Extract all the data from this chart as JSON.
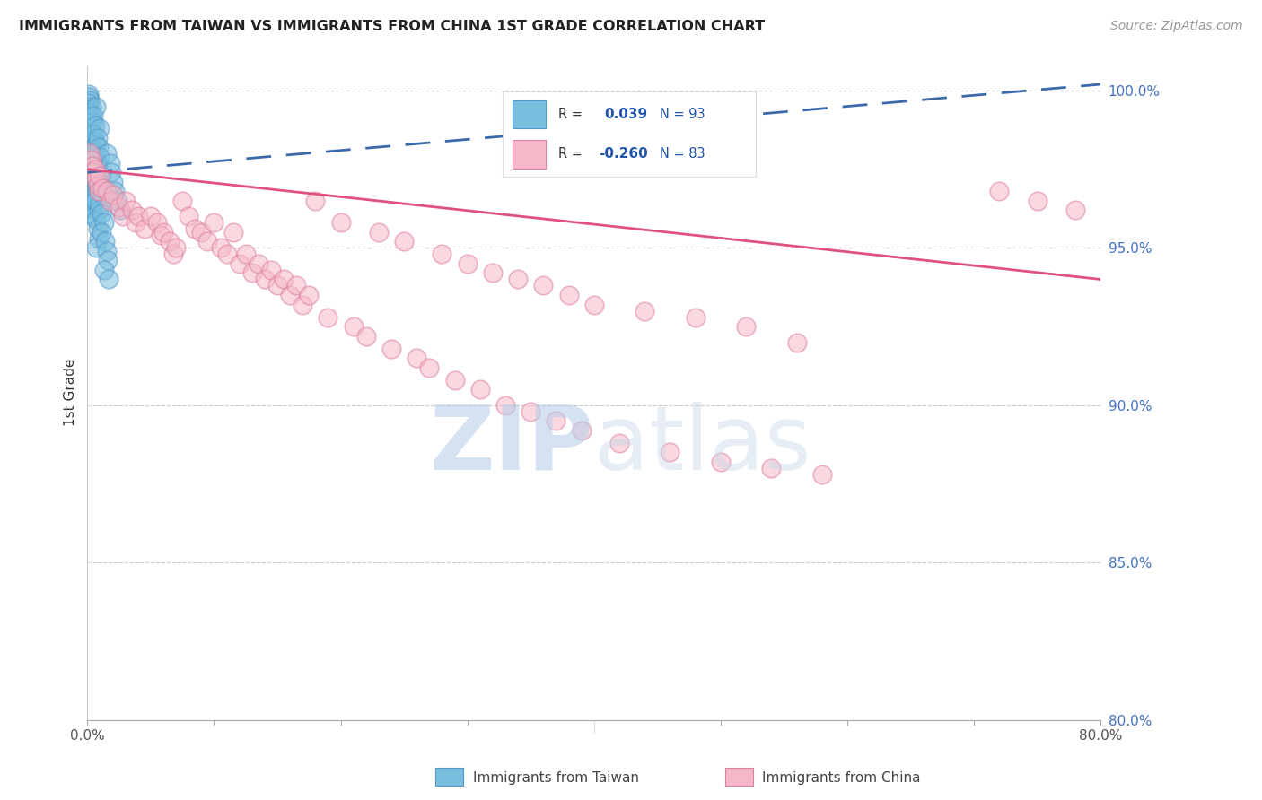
{
  "title": "IMMIGRANTS FROM TAIWAN VS IMMIGRANTS FROM CHINA 1ST GRADE CORRELATION CHART",
  "source": "Source: ZipAtlas.com",
  "ylabel": "1st Grade",
  "xlim": [
    0.0,
    0.8
  ],
  "ylim": [
    0.8,
    1.008
  ],
  "taiwan_R": 0.039,
  "taiwan_N": 93,
  "china_R": -0.26,
  "china_N": 83,
  "taiwan_color": "#7abfdf",
  "taiwan_edge": "#5599cc",
  "china_color": "#f5b8c8",
  "china_edge": "#e080a0",
  "taiwan_line_color": "#3a6aaa",
  "china_line_color": "#e05080",
  "taiwan_scatter_x": [
    0.001,
    0.001,
    0.002,
    0.001,
    0.003,
    0.001,
    0.002,
    0.001,
    0.002,
    0.003,
    0.001,
    0.002,
    0.001,
    0.002,
    0.003,
    0.001,
    0.002,
    0.003,
    0.001,
    0.002,
    0.002,
    0.003,
    0.001,
    0.002,
    0.003,
    0.004,
    0.002,
    0.003,
    0.001,
    0.004,
    0.003,
    0.002,
    0.004,
    0.003,
    0.005,
    0.002,
    0.003,
    0.004,
    0.002,
    0.005,
    0.003,
    0.004,
    0.005,
    0.003,
    0.006,
    0.004,
    0.005,
    0.003,
    0.006,
    0.004,
    0.005,
    0.006,
    0.004,
    0.007,
    0.005,
    0.006,
    0.005,
    0.007,
    0.006,
    0.008,
    0.006,
    0.007,
    0.008,
    0.006,
    0.009,
    0.007,
    0.008,
    0.009,
    0.007,
    0.01,
    0.008,
    0.009,
    0.01,
    0.008,
    0.011,
    0.009,
    0.012,
    0.01,
    0.011,
    0.013,
    0.011,
    0.014,
    0.015,
    0.016,
    0.013,
    0.017,
    0.015,
    0.018,
    0.019,
    0.02,
    0.022,
    0.024,
    0.026
  ],
  "taiwan_scatter_y": [
    0.999,
    0.998,
    0.997,
    0.996,
    0.995,
    0.994,
    0.993,
    0.992,
    0.991,
    0.99,
    0.989,
    0.988,
    0.987,
    0.986,
    0.985,
    0.984,
    0.983,
    0.982,
    0.981,
    0.98,
    0.979,
    0.978,
    0.977,
    0.976,
    0.975,
    0.974,
    0.973,
    0.972,
    0.971,
    0.97,
    0.969,
    0.968,
    0.967,
    0.966,
    0.965,
    0.964,
    0.963,
    0.962,
    0.961,
    0.96,
    0.981,
    0.978,
    0.975,
    0.972,
    0.969,
    0.966,
    0.99,
    0.987,
    0.984,
    0.981,
    0.978,
    0.975,
    0.972,
    0.995,
    0.992,
    0.989,
    0.986,
    0.983,
    0.98,
    0.977,
    0.974,
    0.971,
    0.968,
    0.965,
    0.962,
    0.959,
    0.956,
    0.953,
    0.95,
    0.988,
    0.985,
    0.982,
    0.979,
    0.976,
    0.973,
    0.97,
    0.967,
    0.964,
    0.961,
    0.958,
    0.955,
    0.952,
    0.949,
    0.946,
    0.943,
    0.94,
    0.98,
    0.977,
    0.974,
    0.971,
    0.968,
    0.965,
    0.962
  ],
  "china_scatter_x": [
    0.002,
    0.003,
    0.004,
    0.005,
    0.006,
    0.007,
    0.008,
    0.009,
    0.01,
    0.012,
    0.015,
    0.018,
    0.02,
    0.025,
    0.028,
    0.03,
    0.035,
    0.038,
    0.04,
    0.045,
    0.05,
    0.055,
    0.058,
    0.06,
    0.065,
    0.068,
    0.07,
    0.075,
    0.08,
    0.085,
    0.09,
    0.095,
    0.1,
    0.105,
    0.11,
    0.115,
    0.12,
    0.125,
    0.13,
    0.135,
    0.14,
    0.145,
    0.15,
    0.155,
    0.16,
    0.165,
    0.17,
    0.175,
    0.18,
    0.19,
    0.2,
    0.21,
    0.22,
    0.23,
    0.24,
    0.25,
    0.26,
    0.27,
    0.28,
    0.29,
    0.3,
    0.31,
    0.32,
    0.33,
    0.34,
    0.35,
    0.36,
    0.37,
    0.38,
    0.39,
    0.4,
    0.42,
    0.44,
    0.46,
    0.48,
    0.5,
    0.52,
    0.54,
    0.56,
    0.58,
    0.72,
    0.75,
    0.78
  ],
  "china_scatter_y": [
    0.98,
    0.978,
    0.976,
    0.974,
    0.975,
    0.972,
    0.97,
    0.968,
    0.973,
    0.969,
    0.968,
    0.965,
    0.967,
    0.963,
    0.96,
    0.965,
    0.962,
    0.958,
    0.96,
    0.956,
    0.96,
    0.958,
    0.954,
    0.955,
    0.952,
    0.948,
    0.95,
    0.965,
    0.96,
    0.956,
    0.955,
    0.952,
    0.958,
    0.95,
    0.948,
    0.955,
    0.945,
    0.948,
    0.942,
    0.945,
    0.94,
    0.943,
    0.938,
    0.94,
    0.935,
    0.938,
    0.932,
    0.935,
    0.965,
    0.928,
    0.958,
    0.925,
    0.922,
    0.955,
    0.918,
    0.952,
    0.915,
    0.912,
    0.948,
    0.908,
    0.945,
    0.905,
    0.942,
    0.9,
    0.94,
    0.898,
    0.938,
    0.895,
    0.935,
    0.892,
    0.932,
    0.888,
    0.93,
    0.885,
    0.928,
    0.882,
    0.925,
    0.88,
    0.92,
    0.878,
    0.968,
    0.965,
    0.962
  ]
}
